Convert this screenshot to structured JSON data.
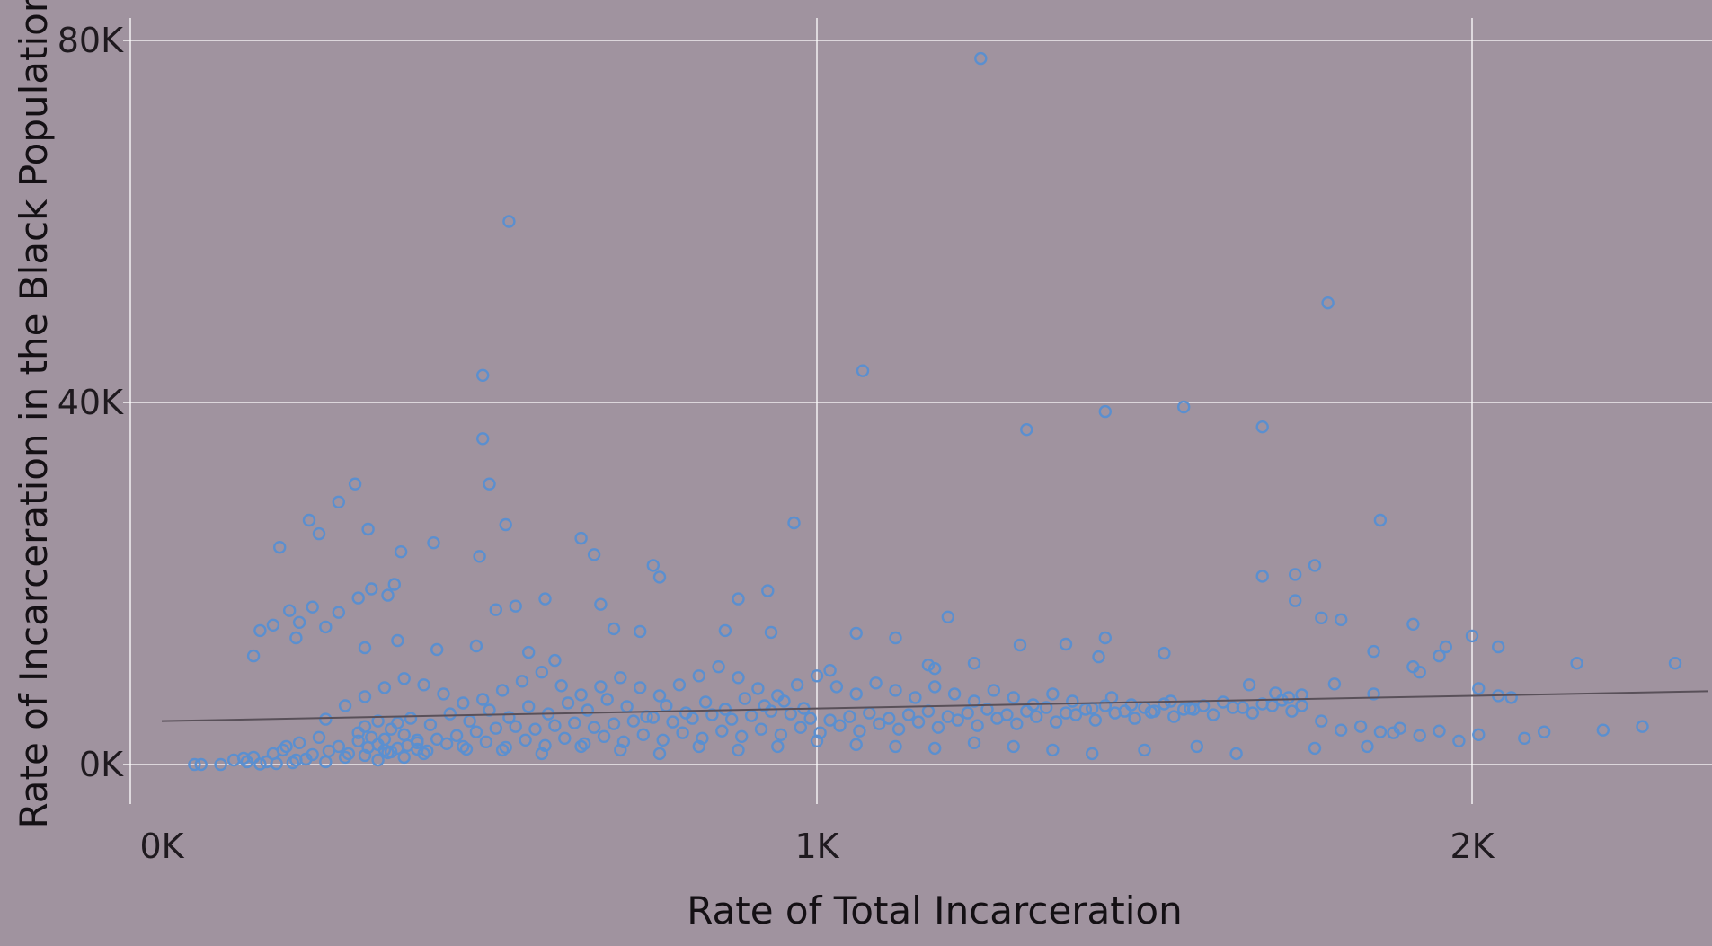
{
  "chart_data": {
    "type": "scatter",
    "xlabel": "Rate of Total Incarceration",
    "ylabel": "Rate of Incarceration in the Black Population",
    "xlim": [
      0,
      2360
    ],
    "ylim": [
      -4200,
      82500
    ],
    "x_ticks": [
      {
        "value": 0,
        "label": "0K"
      },
      {
        "value": 1000,
        "label": "1K"
      },
      {
        "value": 2000,
        "label": "2K"
      }
    ],
    "y_ticks": [
      {
        "value": 0,
        "label": "0K"
      },
      {
        "value": 40000,
        "label": "40K"
      },
      {
        "value": 80000,
        "label": "80K"
      }
    ],
    "grid": true,
    "marker_color": "#5b8fcf",
    "trend_color": "#595059",
    "background": "#a0939f",
    "grid_color": "#ffffff",
    "trend_line": {
      "x": [
        0,
        2360
      ],
      "y": [
        4800,
        8100
      ]
    },
    "points": [
      [
        1250,
        78000
      ],
      [
        530,
        60000
      ],
      [
        1780,
        51000
      ],
      [
        490,
        43000
      ],
      [
        1070,
        43500
      ],
      [
        1560,
        39500
      ],
      [
        1440,
        39000
      ],
      [
        1320,
        37000
      ],
      [
        1680,
        37300
      ],
      [
        490,
        36000
      ],
      [
        500,
        31000
      ],
      [
        295,
        31000
      ],
      [
        270,
        29000
      ],
      [
        225,
        27000
      ],
      [
        525,
        26500
      ],
      [
        1860,
        27000
      ],
      [
        965,
        26700
      ],
      [
        315,
        26000
      ],
      [
        180,
        24000
      ],
      [
        240,
        25500
      ],
      [
        415,
        24500
      ],
      [
        365,
        23500
      ],
      [
        485,
        23000
      ],
      [
        660,
        23200
      ],
      [
        750,
        22000
      ],
      [
        1680,
        20800
      ],
      [
        1730,
        21000
      ],
      [
        1760,
        22000
      ],
      [
        760,
        20700
      ],
      [
        640,
        25000
      ],
      [
        355,
        19900
      ],
      [
        320,
        19400
      ],
      [
        345,
        18700
      ],
      [
        300,
        18400
      ],
      [
        925,
        19200
      ],
      [
        670,
        17700
      ],
      [
        585,
        18300
      ],
      [
        540,
        17500
      ],
      [
        880,
        18300
      ],
      [
        510,
        17100
      ],
      [
        1730,
        18100
      ],
      [
        230,
        17400
      ],
      [
        195,
        17000
      ],
      [
        210,
        15700
      ],
      [
        270,
        16800
      ],
      [
        250,
        15200
      ],
      [
        170,
        15400
      ],
      [
        150,
        14800
      ],
      [
        205,
        14000
      ],
      [
        1200,
        16300
      ],
      [
        1770,
        16200
      ],
      [
        1800,
        16000
      ],
      [
        1910,
        15500
      ],
      [
        360,
        13700
      ],
      [
        480,
        13100
      ],
      [
        690,
        15000
      ],
      [
        730,
        14700
      ],
      [
        860,
        14800
      ],
      [
        930,
        14600
      ],
      [
        1060,
        14500
      ],
      [
        1120,
        14000
      ],
      [
        1440,
        14000
      ],
      [
        1380,
        13300
      ],
      [
        1310,
        13200
      ],
      [
        2000,
        14200
      ],
      [
        1240,
        11200
      ],
      [
        1180,
        10600
      ],
      [
        1020,
        10400
      ],
      [
        1170,
        11000
      ],
      [
        1530,
        12300
      ],
      [
        1960,
        13000
      ],
      [
        2040,
        13000
      ],
      [
        2160,
        11200
      ],
      [
        2310,
        11200
      ],
      [
        1430,
        11900
      ],
      [
        1910,
        10800
      ],
      [
        1950,
        12000
      ],
      [
        1850,
        12500
      ],
      [
        1660,
        8800
      ],
      [
        1700,
        7900
      ],
      [
        1720,
        7400
      ],
      [
        1740,
        7700
      ],
      [
        1790,
        8900
      ],
      [
        1850,
        7800
      ],
      [
        1920,
        10200
      ],
      [
        2010,
        8400
      ],
      [
        2040,
        7600
      ],
      [
        2060,
        7400
      ],
      [
        600,
        11500
      ],
      [
        560,
        12400
      ],
      [
        420,
        12700
      ],
      [
        310,
        12900
      ],
      [
        140,
        12000
      ],
      [
        90,
        0
      ],
      [
        60,
        0
      ],
      [
        50,
        0
      ],
      [
        110,
        500
      ],
      [
        140,
        800
      ],
      [
        170,
        1200
      ],
      [
        190,
        2000
      ],
      [
        210,
        2400
      ],
      [
        240,
        3000
      ],
      [
        270,
        2000
      ],
      [
        300,
        2600
      ],
      [
        330,
        2200
      ],
      [
        360,
        1800
      ],
      [
        390,
        2400
      ],
      [
        420,
        2800
      ],
      [
        450,
        3200
      ],
      [
        480,
        3600
      ],
      [
        510,
        4000
      ],
      [
        540,
        4200
      ],
      [
        570,
        3900
      ],
      [
        600,
        4300
      ],
      [
        630,
        4600
      ],
      [
        660,
        4100
      ],
      [
        690,
        4500
      ],
      [
        720,
        4800
      ],
      [
        750,
        5200
      ],
      [
        780,
        4700
      ],
      [
        810,
        5100
      ],
      [
        840,
        5500
      ],
      [
        870,
        5000
      ],
      [
        900,
        5400
      ],
      [
        930,
        5900
      ],
      [
        960,
        5600
      ],
      [
        990,
        5100
      ],
      [
        1020,
        4900
      ],
      [
        1050,
        5300
      ],
      [
        1080,
        5700
      ],
      [
        1110,
        5100
      ],
      [
        1140,
        5500
      ],
      [
        1170,
        5900
      ],
      [
        1200,
        5300
      ],
      [
        1230,
        5700
      ],
      [
        1260,
        6100
      ],
      [
        1290,
        5500
      ],
      [
        1320,
        5900
      ],
      [
        1350,
        6300
      ],
      [
        1380,
        5700
      ],
      [
        1410,
        6100
      ],
      [
        1440,
        6500
      ],
      [
        1470,
        5900
      ],
      [
        1500,
        6300
      ],
      [
        1530,
        6700
      ],
      [
        1560,
        6100
      ],
      [
        1590,
        6500
      ],
      [
        1620,
        6900
      ],
      [
        1650,
        6300
      ],
      [
        1680,
        6700
      ],
      [
        1710,
        7100
      ],
      [
        1740,
        6500
      ],
      [
        1770,
        4800
      ],
      [
        1800,
        3800
      ],
      [
        1830,
        4200
      ],
      [
        1860,
        3600
      ],
      [
        1890,
        4000
      ],
      [
        1920,
        3200
      ],
      [
        1950,
        3700
      ],
      [
        1980,
        2600
      ],
      [
        2010,
        3300
      ],
      [
        2080,
        2900
      ],
      [
        2200,
        3800
      ],
      [
        2260,
        4200
      ],
      [
        2110,
        3600
      ],
      [
        1880,
        3500
      ],
      [
        1840,
        2000
      ],
      [
        1760,
        1800
      ],
      [
        1640,
        1200
      ],
      [
        1580,
        2000
      ],
      [
        1500,
        1600
      ],
      [
        1420,
        1200
      ],
      [
        1360,
        1600
      ],
      [
        1300,
        2000
      ],
      [
        1240,
        2400
      ],
      [
        1180,
        1800
      ],
      [
        1120,
        2000
      ],
      [
        1060,
        2200
      ],
      [
        1000,
        2600
      ],
      [
        940,
        2000
      ],
      [
        880,
        1600
      ],
      [
        820,
        2000
      ],
      [
        760,
        1200
      ],
      [
        700,
        1600
      ],
      [
        640,
        2000
      ],
      [
        580,
        1200
      ],
      [
        520,
        1600
      ],
      [
        460,
        2000
      ],
      [
        400,
        1200
      ],
      [
        340,
        1600
      ],
      [
        280,
        800
      ],
      [
        220,
        600
      ],
      [
        160,
        300
      ],
      [
        125,
        700
      ],
      [
        185,
        1600
      ],
      [
        205,
        500
      ],
      [
        230,
        1100
      ],
      [
        255,
        1500
      ],
      [
        285,
        1200
      ],
      [
        315,
        1900
      ],
      [
        345,
        1300
      ],
      [
        375,
        2100
      ],
      [
        405,
        1500
      ],
      [
        435,
        2300
      ],
      [
        465,
        1700
      ],
      [
        495,
        2500
      ],
      [
        525,
        1900
      ],
      [
        555,
        2700
      ],
      [
        585,
        2100
      ],
      [
        615,
        2900
      ],
      [
        645,
        2300
      ],
      [
        675,
        3100
      ],
      [
        705,
        2500
      ],
      [
        735,
        3300
      ],
      [
        765,
        2700
      ],
      [
        795,
        3500
      ],
      [
        825,
        2900
      ],
      [
        855,
        3700
      ],
      [
        885,
        3100
      ],
      [
        915,
        3900
      ],
      [
        945,
        3300
      ],
      [
        975,
        4100
      ],
      [
        1005,
        3500
      ],
      [
        1035,
        4300
      ],
      [
        1065,
        3700
      ],
      [
        1095,
        4500
      ],
      [
        1125,
        3900
      ],
      [
        1155,
        4700
      ],
      [
        1185,
        4100
      ],
      [
        1215,
        4900
      ],
      [
        1245,
        4300
      ],
      [
        1275,
        5100
      ],
      [
        1305,
        4500
      ],
      [
        1335,
        5300
      ],
      [
        1365,
        4700
      ],
      [
        1395,
        5500
      ],
      [
        1425,
        4900
      ],
      [
        1455,
        5700
      ],
      [
        1485,
        5100
      ],
      [
        1515,
        5900
      ],
      [
        1545,
        5300
      ],
      [
        1575,
        6100
      ],
      [
        1605,
        5500
      ],
      [
        1635,
        6300
      ],
      [
        1665,
        5700
      ],
      [
        1695,
        6500
      ],
      [
        1725,
        5900
      ],
      [
        250,
        5000
      ],
      [
        280,
        6500
      ],
      [
        310,
        7500
      ],
      [
        340,
        8500
      ],
      [
        370,
        9500
      ],
      [
        400,
        8800
      ],
      [
        430,
        7800
      ],
      [
        460,
        6800
      ],
      [
        490,
        7200
      ],
      [
        520,
        8200
      ],
      [
        550,
        9200
      ],
      [
        580,
        10200
      ],
      [
        610,
        8700
      ],
      [
        640,
        7700
      ],
      [
        670,
        8600
      ],
      [
        700,
        9600
      ],
      [
        730,
        8500
      ],
      [
        760,
        7600
      ],
      [
        790,
        8800
      ],
      [
        820,
        9800
      ],
      [
        850,
        10800
      ],
      [
        880,
        9600
      ],
      [
        910,
        8400
      ],
      [
        940,
        7600
      ],
      [
        970,
        8800
      ],
      [
        1000,
        9800
      ],
      [
        1030,
        8600
      ],
      [
        1060,
        7800
      ],
      [
        1090,
        9000
      ],
      [
        1120,
        8200
      ],
      [
        1150,
        7400
      ],
      [
        1180,
        8600
      ],
      [
        1210,
        7800
      ],
      [
        1240,
        7000
      ],
      [
        1270,
        8200
      ],
      [
        1300,
        7400
      ],
      [
        1330,
        6600
      ],
      [
        1360,
        7800
      ],
      [
        1390,
        7000
      ],
      [
        1420,
        6200
      ],
      [
        1450,
        7400
      ],
      [
        1480,
        6600
      ],
      [
        1510,
        5800
      ],
      [
        1540,
        7000
      ],
      [
        1570,
        6200
      ],
      [
        300,
        3500
      ],
      [
        310,
        4200
      ],
      [
        320,
        3000
      ],
      [
        330,
        4800
      ],
      [
        340,
        2800
      ],
      [
        350,
        3900
      ],
      [
        360,
        4600
      ],
      [
        370,
        3300
      ],
      [
        380,
        5100
      ],
      [
        390,
        2700
      ],
      [
        410,
        4400
      ],
      [
        440,
        5600
      ],
      [
        470,
        4800
      ],
      [
        500,
        6000
      ],
      [
        530,
        5200
      ],
      [
        560,
        6400
      ],
      [
        590,
        5600
      ],
      [
        620,
        6800
      ],
      [
        650,
        6000
      ],
      [
        680,
        7200
      ],
      [
        710,
        6400
      ],
      [
        740,
        5300
      ],
      [
        770,
        6500
      ],
      [
        800,
        5700
      ],
      [
        830,
        6900
      ],
      [
        860,
        6100
      ],
      [
        890,
        7300
      ],
      [
        920,
        6500
      ],
      [
        950,
        7000
      ],
      [
        980,
        6200
      ],
      [
        310,
        1000
      ],
      [
        330,
        500
      ],
      [
        350,
        1400
      ],
      [
        370,
        800
      ],
      [
        390,
        1700
      ],
      [
        250,
        300
      ],
      [
        200,
        200
      ],
      [
        175,
        100
      ],
      [
        150,
        50
      ],
      [
        130,
        300
      ]
    ]
  }
}
